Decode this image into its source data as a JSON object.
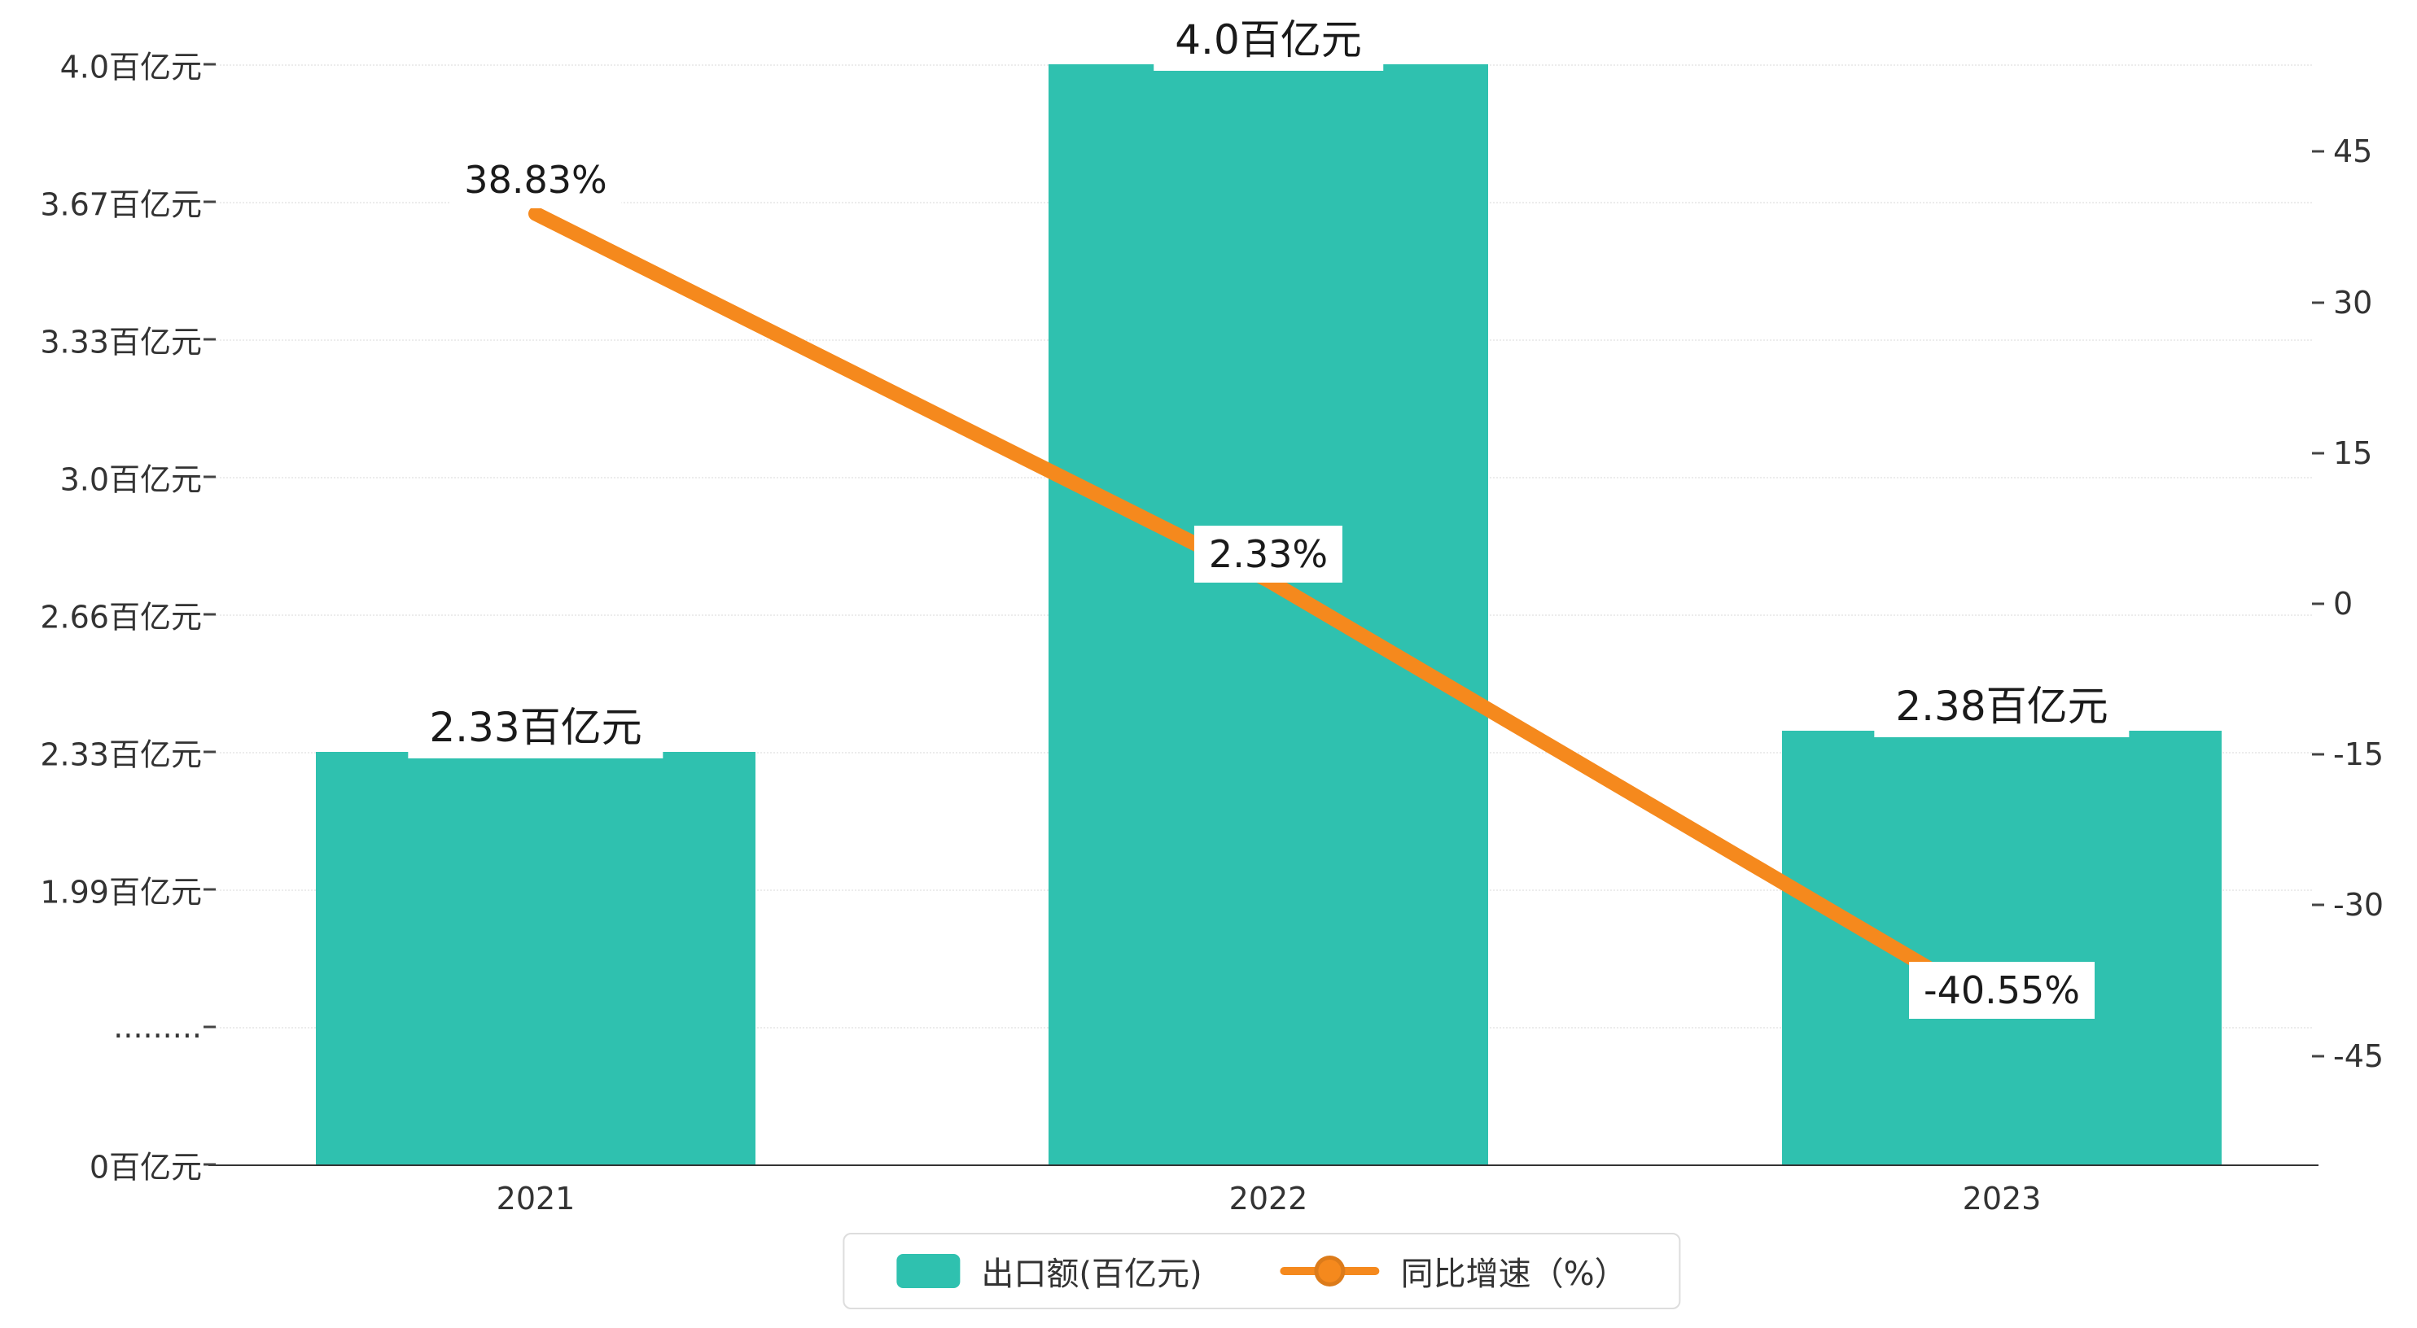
{
  "chart_data": {
    "type": "bar+line",
    "title": "",
    "categories": [
      "2021",
      "2022",
      "2023"
    ],
    "series": [
      {
        "name": "出口额(百亿元)",
        "type": "bar",
        "values": [
          2.33,
          4.0,
          2.38
        ],
        "labels": [
          "2.33百亿元",
          "4.0百亿元",
          "2.38百亿元"
        ],
        "color": "#2fc1af"
      },
      {
        "name": "同比增速（%）",
        "type": "line",
        "values": [
          38.83,
          2.33,
          -40.55
        ],
        "labels": [
          "38.83%",
          "2.33%",
          "-40.55%"
        ],
        "color": "#f5891d"
      }
    ],
    "left_axis": {
      "broken": true,
      "ticks": [
        {
          "label": "4.0百亿元",
          "value": 4.0
        },
        {
          "label": "3.67百亿元",
          "value": 3.67
        },
        {
          "label": "3.33百亿元",
          "value": 3.33
        },
        {
          "label": "3.0百亿元",
          "value": 3.0
        },
        {
          "label": "2.66百亿元",
          "value": 2.66
        },
        {
          "label": "2.33百亿元",
          "value": 2.33
        },
        {
          "label": "1.99百亿元",
          "value": 1.99
        },
        {
          "label": ".........",
          "value": null
        },
        {
          "label": "0百亿元",
          "value": 0
        }
      ]
    },
    "right_axis": {
      "ticks": [
        45,
        30,
        15,
        0,
        -15,
        -30,
        -45
      ]
    },
    "legend": [
      {
        "label": "出口额(百亿元)",
        "marker": "bar",
        "color": "#2fc1af"
      },
      {
        "label": "同比增速（%）",
        "marker": "line",
        "color": "#f5891d"
      }
    ],
    "grid": true,
    "legend_position": "bottom-center"
  }
}
